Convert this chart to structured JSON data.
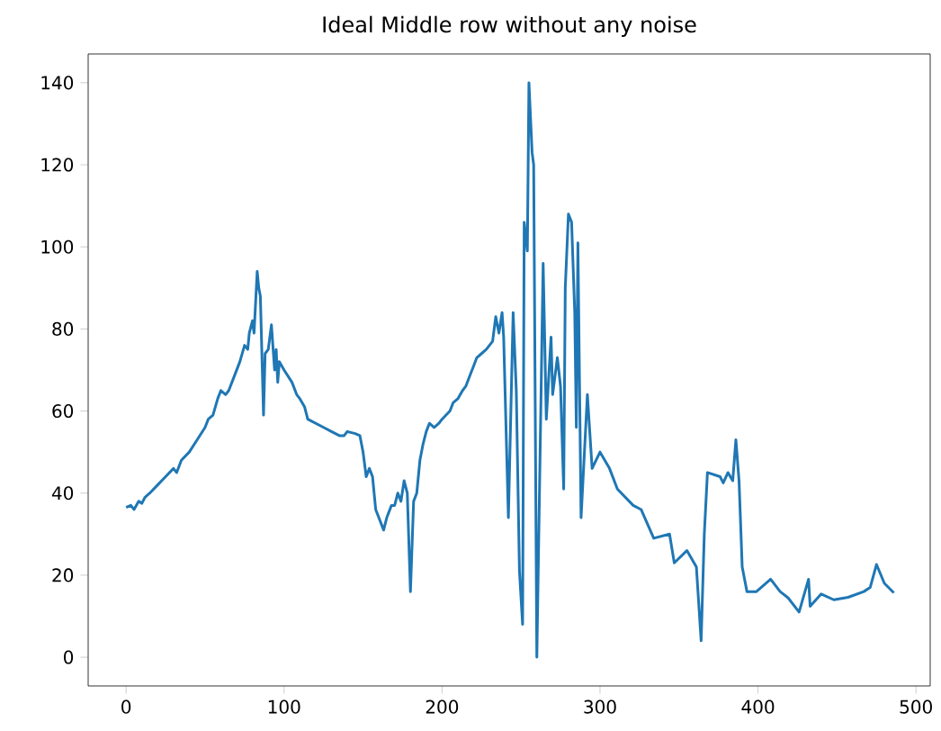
{
  "chart_data": {
    "type": "line",
    "title": "Ideal Middle row without any noise",
    "xlim": [
      -24,
      509
    ],
    "ylim": [
      -7,
      147
    ],
    "xticks": [
      0,
      100,
      200,
      300,
      400,
      500
    ],
    "yticks": [
      0,
      20,
      40,
      60,
      80,
      100,
      120,
      140
    ],
    "grid": false,
    "series": [
      {
        "color": "#1f77b4",
        "x": [
          0,
          3,
          5,
          8,
          10,
          12,
          15,
          20,
          25,
          30,
          32,
          35,
          40,
          45,
          50,
          52,
          55,
          58,
          60,
          63,
          65,
          68,
          70,
          72,
          75,
          77,
          78,
          80,
          81,
          83,
          84,
          85,
          87,
          88,
          90,
          92,
          94,
          95,
          96,
          97,
          100,
          105,
          108,
          110,
          113,
          115,
          120,
          125,
          130,
          135,
          138,
          140,
          145,
          148,
          150,
          152,
          154,
          156,
          158,
          160,
          163,
          165,
          168,
          170,
          172,
          174,
          176,
          178,
          180,
          182,
          184,
          186,
          188,
          190,
          192,
          195,
          198,
          200,
          205,
          207,
          210,
          213,
          215,
          218,
          220,
          222,
          225,
          228,
          230,
          232,
          234,
          236,
          238,
          239,
          242,
          245,
          247,
          249,
          251,
          252,
          254,
          255,
          257,
          258,
          260,
          264,
          266,
          269,
          270,
          273,
          275,
          277,
          278,
          280,
          282,
          284,
          285,
          286,
          288,
          292,
          295,
          300,
          306,
          311,
          321,
          326,
          334,
          344,
          347,
          355,
          361,
          364,
          366,
          368,
          376,
          378,
          381,
          384,
          386,
          388,
          390,
          393,
          399,
          408,
          414,
          419,
          426,
          432,
          433,
          440,
          448,
          457,
          467,
          471,
          475,
          480,
          486
        ],
        "values": [
          36.5,
          37,
          36,
          38,
          37.5,
          39,
          40,
          42,
          44,
          46,
          45,
          48,
          50,
          53,
          56,
          58,
          59,
          63,
          65,
          64,
          65,
          68,
          70,
          72,
          76,
          75,
          79,
          82,
          79,
          94,
          90,
          88,
          59,
          74,
          75,
          81,
          70,
          75,
          67,
          72,
          70,
          67,
          64,
          63,
          61,
          58,
          57,
          56,
          55,
          54,
          54,
          55,
          54.5,
          54,
          50,
          44,
          46,
          44,
          36,
          34,
          31,
          34,
          37,
          37,
          40,
          38,
          43,
          40,
          16,
          38,
          40,
          48,
          52,
          55,
          57,
          56,
          57,
          58,
          60,
          62,
          63,
          65,
          66,
          69,
          71,
          73,
          74,
          75,
          76,
          77,
          83,
          79,
          84,
          78,
          34,
          84,
          65,
          21,
          8,
          106,
          99,
          140,
          123,
          120,
          0,
          96,
          58,
          78,
          64,
          73,
          66,
          41,
          90,
          108,
          106,
          84,
          56,
          101,
          34,
          64,
          46,
          50,
          46,
          41,
          37,
          36,
          29,
          30,
          23,
          26,
          22,
          4,
          30,
          45,
          44,
          42.5,
          45,
          43,
          53,
          43,
          22,
          16,
          16,
          19,
          16,
          14.5,
          11,
          19,
          12.4,
          15.4,
          14,
          14.6,
          16,
          17,
          22.6,
          18,
          15.7
        ]
      }
    ]
  }
}
